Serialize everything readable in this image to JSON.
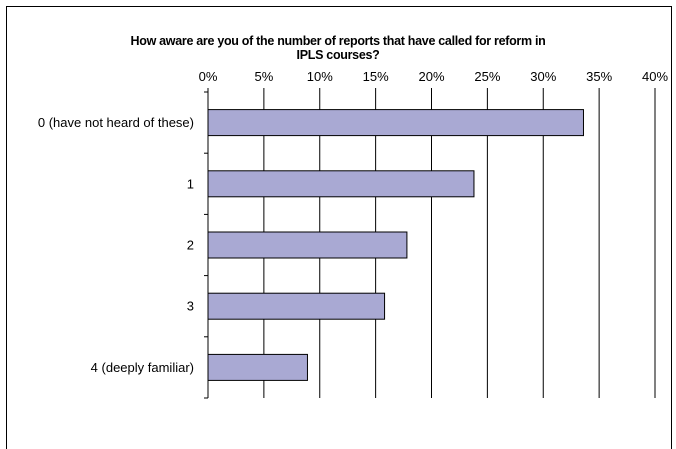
{
  "chart_data": {
    "type": "bar",
    "orientation": "horizontal",
    "title_lines": [
      "How aware are you of the number of reports that have called for reform in",
      "IPLS courses?"
    ],
    "categories": [
      "0 (have not heard of these)",
      "1",
      "2",
      "3",
      "4 (deeply familiar)"
    ],
    "values": [
      33.6,
      23.8,
      17.8,
      15.8,
      8.9
    ],
    "xlim": [
      0,
      40
    ],
    "x_ticks": [
      "0%",
      "5%",
      "10%",
      "15%",
      "20%",
      "25%",
      "30%",
      "35%",
      "40%"
    ],
    "xlabel": "",
    "ylabel": "",
    "grid": true,
    "x_axis_position": "top",
    "bar_color": "#a9a9d3",
    "bar_edge_color": "#000000"
  }
}
